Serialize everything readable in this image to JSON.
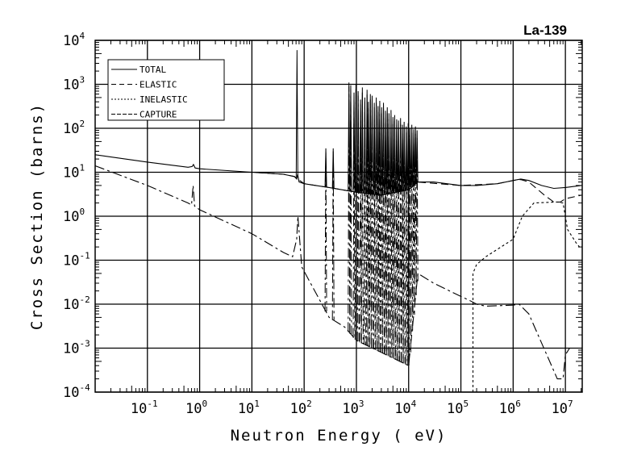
{
  "chart_data": {
    "type": "line",
    "title": "La-139",
    "xlabel": "Neutron Energy ( eV)",
    "ylabel": "Cross Section (barns)",
    "xscale": "log",
    "yscale": "log",
    "xlim": [
      0.01,
      21000000
    ],
    "ylim": [
      0.0001,
      10000
    ],
    "grid": true,
    "legend_position": "top-left",
    "x_ticks": [
      {
        "base": "10",
        "exp": "-1",
        "value": 0.1
      },
      {
        "base": "10",
        "exp": "0",
        "value": 1
      },
      {
        "base": "10",
        "exp": "1",
        "value": 10
      },
      {
        "base": "10",
        "exp": "2",
        "value": 100
      },
      {
        "base": "10",
        "exp": "3",
        "value": 1000
      },
      {
        "base": "10",
        "exp": "4",
        "value": 10000
      },
      {
        "base": "10",
        "exp": "5",
        "value": 100000
      },
      {
        "base": "10",
        "exp": "6",
        "value": 1000000
      },
      {
        "base": "10",
        "exp": "7",
        "value": 10000000
      }
    ],
    "y_ticks": [
      {
        "base": "10",
        "exp": "4",
        "value": 10000
      },
      {
        "base": "10",
        "exp": "3",
        "value": 1000
      },
      {
        "base": "10",
        "exp": "2",
        "value": 100
      },
      {
        "base": "10",
        "exp": "1",
        "value": 10
      },
      {
        "base": "10",
        "exp": "0",
        "value": 1
      },
      {
        "base": "10",
        "exp": "-1",
        "value": 0.1
      },
      {
        "base": "10",
        "exp": "-2",
        "value": 0.01
      },
      {
        "base": "10",
        "exp": "-3",
        "value": 0.001
      },
      {
        "base": "10",
        "exp": "-4",
        "value": 0.0001
      }
    ],
    "series": [
      {
        "name": "TOTAL",
        "dash": "",
        "x": [
          0.01,
          0.1,
          0.6,
          0.72,
          0.76,
          0.82,
          1,
          10,
          40,
          65,
          72,
          75,
          80,
          100,
          300,
          1000,
          3000,
          10000,
          15000,
          30000,
          100000,
          200000,
          500000,
          1000000,
          1400000,
          2000000,
          3500000,
          6000000,
          10000000,
          20000000
        ],
        "y": [
          25,
          17,
          13,
          13.5,
          15,
          12.5,
          12,
          10,
          9,
          8,
          7,
          9,
          6,
          5.5,
          4.5,
          3.5,
          3,
          4,
          6,
          6,
          5,
          5,
          5.5,
          6.5,
          7,
          6.5,
          5,
          4.3,
          4.5,
          5
        ],
        "resonances": [
          [
            73,
            6000
          ],
          [
            260,
            35
          ],
          [
            360,
            35
          ],
          [
            720,
            1100
          ],
          [
            780,
            950
          ],
          [
            900,
            650
          ],
          [
            980,
            1000
          ],
          [
            1080,
            700
          ],
          [
            1200,
            450
          ],
          [
            1300,
            850
          ],
          [
            1450,
            500
          ],
          [
            1600,
            750
          ],
          [
            1700,
            400
          ],
          [
            1850,
            600
          ],
          [
            2000,
            550
          ],
          [
            2200,
            380
          ],
          [
            2400,
            500
          ],
          [
            2600,
            320
          ],
          [
            2800,
            420
          ],
          [
            3050,
            300
          ],
          [
            3300,
            380
          ],
          [
            3600,
            250
          ],
          [
            3900,
            300
          ],
          [
            4200,
            220
          ],
          [
            4600,
            260
          ],
          [
            5000,
            180
          ],
          [
            5400,
            200
          ],
          [
            5900,
            160
          ],
          [
            6400,
            150
          ],
          [
            7000,
            170
          ],
          [
            7600,
            120
          ],
          [
            8200,
            140
          ],
          [
            9000,
            110
          ],
          [
            9800,
            130
          ],
          [
            10600,
            100
          ],
          [
            11500,
            120
          ],
          [
            12500,
            95
          ],
          [
            13500,
            110
          ],
          [
            14500,
            90
          ]
        ]
      },
      {
        "name": "ELASTIC",
        "dash": "9,5",
        "x": [
          1,
          10,
          40,
          65,
          100,
          300,
          1000,
          3000,
          10000,
          15000,
          100000,
          500000,
          1000000,
          1400000,
          2000000,
          4000000,
          6000000,
          8000000,
          10000000,
          20000000
        ],
        "y": [
          10,
          10,
          9,
          8,
          5.5,
          4.5,
          3.5,
          3,
          4,
          6,
          5,
          5.5,
          6.5,
          6.8,
          6,
          3,
          2.1,
          2.1,
          2.5,
          3
        ],
        "resonances": []
      },
      {
        "name": "INELASTIC",
        "dash": "3,3",
        "x": [
          170000,
          170001,
          200000,
          300000,
          1000000,
          1500000,
          2500000,
          7000000,
          9000000,
          11000000,
          16000000,
          20000000
        ],
        "y": [
          0.0001,
          0.05,
          0.08,
          0.12,
          0.3,
          1,
          2,
          2.1,
          2,
          0.5,
          0.25,
          0.18
        ],
        "resonances": []
      },
      {
        "name": "CAPTURE",
        "dash": "12,4,3,4",
        "x": [
          0.01,
          0.1,
          0.6,
          0.7,
          0.75,
          0.8,
          1,
          10,
          40,
          60,
          72,
          76,
          90,
          300,
          600,
          1000,
          3000,
          10000,
          15000,
          30000,
          100000,
          150000,
          200000,
          300000,
          1000000,
          1300000,
          2000000,
          3000000,
          5000000,
          7000000,
          9000000,
          10000000,
          12000000,
          20000000
        ],
        "y": [
          14,
          5,
          2,
          1.8,
          5,
          1.7,
          1.4,
          0.4,
          0.15,
          0.12,
          0.3,
          1,
          0.07,
          0.005,
          0.003,
          0.0015,
          0.0008,
          0.0004,
          0.05,
          0.03,
          0.015,
          0.012,
          0.01,
          0.009,
          0.0095,
          0.01,
          0.006,
          0.002,
          0.0005,
          0.0002,
          0.0002,
          0.0007,
          0.001,
          0.001
        ],
        "resonances": [
          [
            260,
            30
          ],
          [
            360,
            30
          ],
          [
            720,
            900
          ],
          [
            780,
            800
          ],
          [
            900,
            500
          ],
          [
            980,
            800
          ],
          [
            1080,
            550
          ],
          [
            1200,
            350
          ],
          [
            1300,
            650
          ],
          [
            1450,
            400
          ],
          [
            1600,
            600
          ],
          [
            1700,
            300
          ],
          [
            1850,
            450
          ],
          [
            2000,
            400
          ],
          [
            2200,
            300
          ],
          [
            2400,
            380
          ],
          [
            2600,
            250
          ],
          [
            2800,
            320
          ],
          [
            3050,
            230
          ],
          [
            3300,
            280
          ],
          [
            3600,
            190
          ],
          [
            3900,
            220
          ],
          [
            4200,
            160
          ],
          [
            4600,
            190
          ],
          [
            5000,
            130
          ],
          [
            5400,
            150
          ],
          [
            5900,
            120
          ],
          [
            6400,
            110
          ],
          [
            7000,
            120
          ],
          [
            7600,
            90
          ],
          [
            8200,
            100
          ],
          [
            9000,
            80
          ],
          [
            9800,
            90
          ],
          [
            10600,
            70
          ],
          [
            11500,
            80
          ],
          [
            12500,
            65
          ],
          [
            13500,
            75
          ],
          [
            14500,
            60
          ]
        ]
      }
    ]
  }
}
